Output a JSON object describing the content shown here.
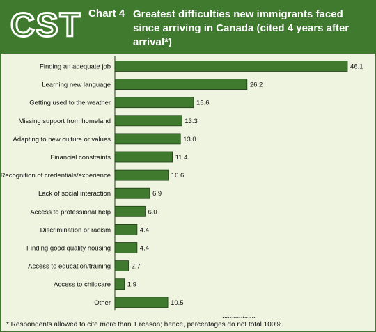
{
  "header": {
    "logo_text": "CST",
    "chart_number": "Chart 4",
    "title": "Greatest difficulties new immigrants faced since arriving in Canada (cited 4 years after arrival*)"
  },
  "footnote": "* Respondents allowed to cite more than 1 reason; hence, percentages do not total 100%.",
  "colors": {
    "header": "#3f7a2f",
    "background": "#eef4df",
    "bar": "#3f7a2f",
    "bar_border": "#1f3d16"
  },
  "chart_data": {
    "type": "bar",
    "orientation": "horizontal",
    "xlabel": "percentage",
    "categories": [
      "Finding an adequate job",
      "Learning new language",
      "Getting used to the weather",
      "Missing support from homeland",
      "Adapting to new culture or values",
      "Financial constraints",
      "Recognition of credentials/experience",
      "Lack of social interaction",
      "Access to professional help",
      "Discrimination or racism",
      "Finding good quality housing",
      "Access to education/training",
      "Access to childcare",
      "Other"
    ],
    "values": [
      46.1,
      26.2,
      15.6,
      13.3,
      13.0,
      11.4,
      10.6,
      6.9,
      6.0,
      4.4,
      4.4,
      2.7,
      1.9,
      10.5
    ],
    "value_labels": [
      "46.1",
      "26.2",
      "15.6",
      "13.3",
      "13.0",
      "11.4",
      "10.6",
      "6.9",
      "6.0",
      "4.4",
      "4.4",
      "2.7",
      "1.9",
      "10.5"
    ],
    "xlim": [
      0,
      46.1
    ]
  }
}
